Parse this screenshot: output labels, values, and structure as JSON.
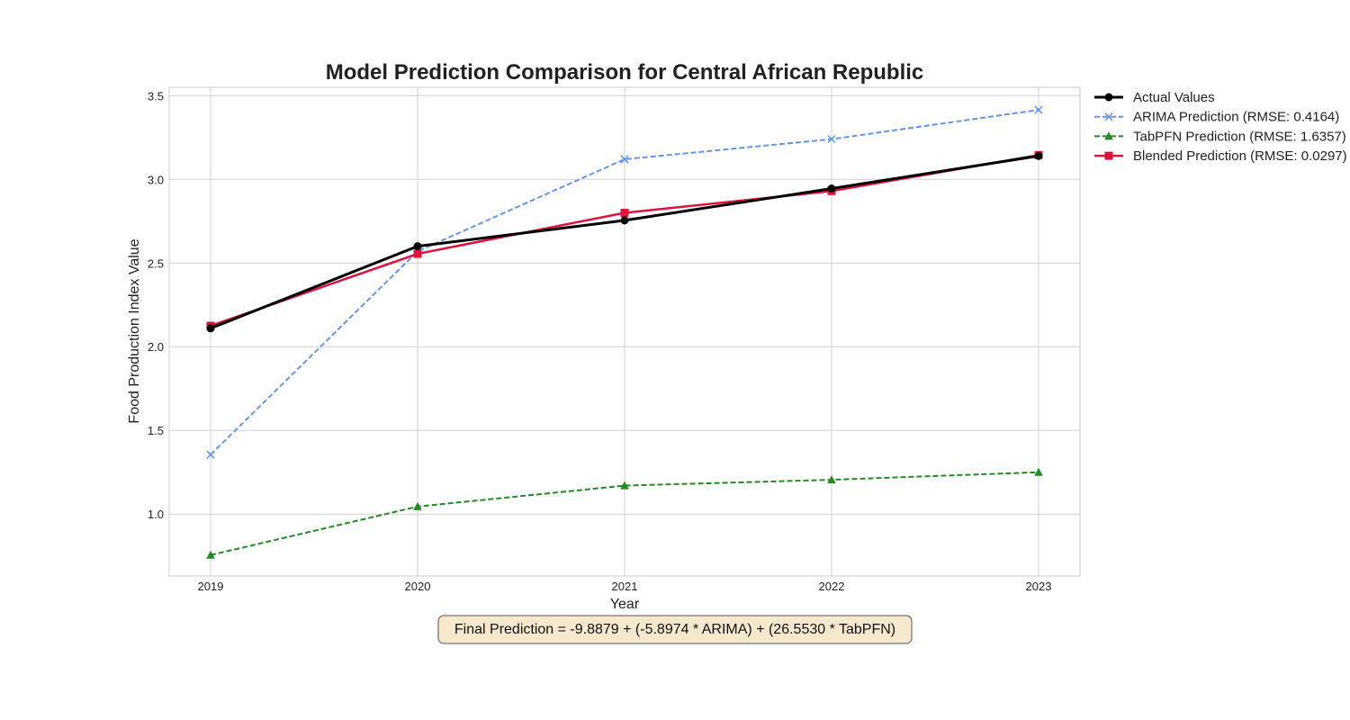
{
  "chart_data": {
    "type": "line",
    "title": "Model Prediction Comparison for Central African Republic",
    "xlabel": "Year",
    "ylabel": "Food Production Index Value",
    "x": [
      2019,
      2020,
      2021,
      2022,
      2023
    ],
    "xlim": [
      2018.8,
      2023.2
    ],
    "ylim": [
      0.63,
      3.55
    ],
    "yticks": [
      1.0,
      1.5,
      2.0,
      2.5,
      3.0,
      3.5
    ],
    "grid": true,
    "legend_position": "outside-top-right",
    "series": [
      {
        "name": "Actual Values",
        "values": [
          2.11,
          2.6,
          2.755,
          2.945,
          3.14
        ],
        "color": "#000000",
        "style": "solid",
        "marker": "circle",
        "width": 3
      },
      {
        "name": "ARIMA Prediction (RMSE: 0.4164)",
        "values": [
          1.355,
          2.57,
          3.12,
          3.24,
          3.415
        ],
        "color": "#6495ED",
        "style": "dashed",
        "marker": "x",
        "width": 2
      },
      {
        "name": "TabPFN Prediction (RMSE: 1.6357)",
        "values": [
          0.755,
          1.045,
          1.17,
          1.205,
          1.25
        ],
        "color": "#228B22",
        "style": "dashed",
        "marker": "triangle",
        "width": 2
      },
      {
        "name": "Blended Prediction (RMSE: 0.0297)",
        "values": [
          2.125,
          2.555,
          2.8,
          2.93,
          3.145
        ],
        "color": "#DC143C",
        "style": "solid",
        "marker": "square",
        "width": 2.5
      }
    ],
    "annotation": "Final Prediction = -9.8879 + (-5.8974 * ARIMA) + (26.5530 * TabPFN)"
  }
}
